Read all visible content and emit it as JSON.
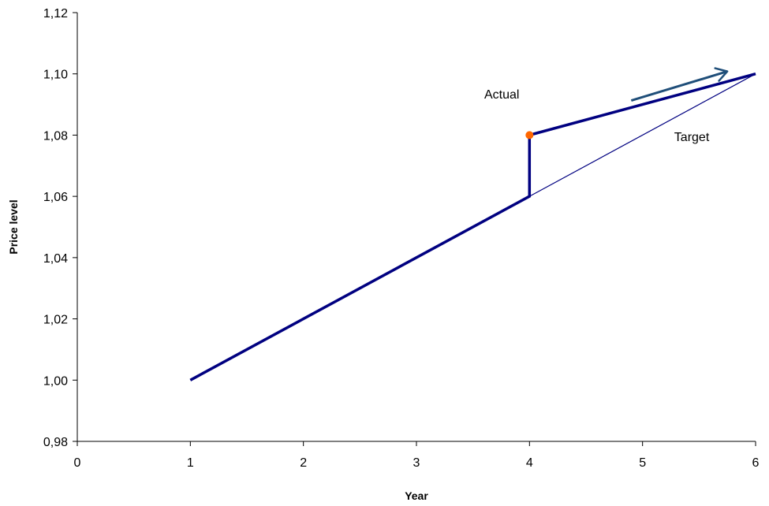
{
  "chart_data": {
    "type": "line",
    "xlabel": "Year",
    "ylabel": "Price level",
    "xlim": [
      0,
      6
    ],
    "ylim": [
      0.98,
      1.12
    ],
    "x_ticks": [
      "0",
      "1",
      "2",
      "3",
      "4",
      "5",
      "6"
    ],
    "y_ticks": [
      "0,98",
      "1,00",
      "1,02",
      "1,04",
      "1,06",
      "1,08",
      "1,10",
      "1,12"
    ],
    "grid": false,
    "legend": "none",
    "series": [
      {
        "name": "Actual",
        "color": "#000080",
        "points": [
          [
            1,
            1.0
          ],
          [
            4,
            1.06
          ],
          [
            4,
            1.08
          ],
          [
            6,
            1.1
          ]
        ]
      },
      {
        "name": "Target",
        "color": "#000080",
        "points": [
          [
            4,
            1.06
          ],
          [
            6,
            1.1
          ]
        ]
      }
    ],
    "markers": [
      {
        "x": 4,
        "y": 1.08,
        "color": "#FF6600"
      }
    ],
    "arrow": {
      "from": [
        4.9,
        1.0913
      ],
      "to": [
        5.75,
        1.1008
      ],
      "color": "#1F4E79"
    },
    "annotations": [
      {
        "text": "Actual",
        "x": 3.6,
        "y": 1.092
      },
      {
        "text": "Target",
        "x": 5.28,
        "y": 1.078
      }
    ]
  }
}
